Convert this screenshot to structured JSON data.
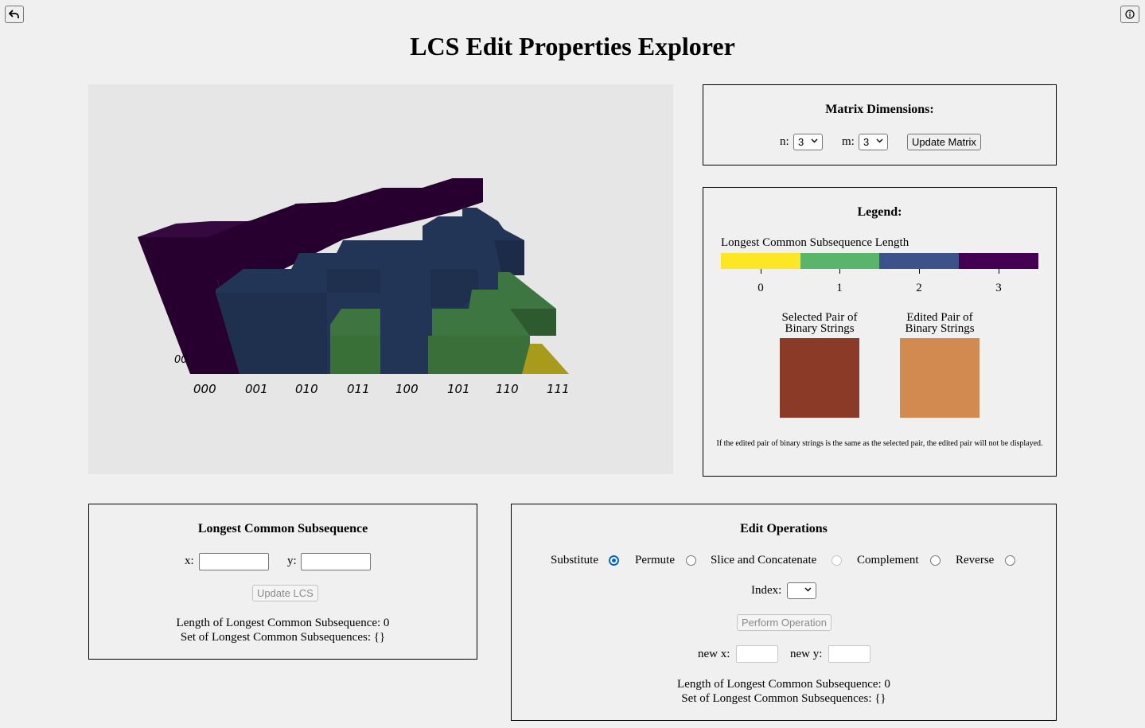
{
  "title": "LCS Edit Properties Explorer",
  "icons": {
    "back": "undo-arrow-icon",
    "info": "info-circle-icon"
  },
  "viz": {
    "axis_labels": [
      "000",
      "001",
      "010",
      "011",
      "100",
      "101",
      "110",
      "111"
    ],
    "side_label": "00"
  },
  "matrix": {
    "title": "Matrix Dimensions:",
    "n_label": "n:",
    "n_value": "3",
    "m_label": "m:",
    "m_value": "3",
    "update_label": "Update Matrix"
  },
  "legend": {
    "title": "Legend:",
    "bar_title": "Longest Common Subsequence Length",
    "colors": [
      "#fde725",
      "#5ab46a",
      "#3b528b",
      "#440154"
    ],
    "ticks": [
      "0",
      "1",
      "2",
      "3"
    ],
    "selected_label_1": "Selected Pair of",
    "selected_label_2": "Binary Strings",
    "selected_color": "#8b3a28",
    "edited_label_1": "Edited Pair of",
    "edited_label_2": "Binary Strings",
    "edited_color": "#d28a50",
    "note": "If the edited pair of binary strings is the same as the selected pair, the edited pair will not be displayed."
  },
  "lcs": {
    "title": "Longest Common Subsequence",
    "x_label": "x:",
    "y_label": "y:",
    "x_value": "",
    "y_value": "",
    "update_label": "Update LCS",
    "length_text": "Length of Longest Common Subsequence: 0",
    "set_text": "Set of Longest Common Subsequences: {}"
  },
  "edit": {
    "title": "Edit Operations",
    "ops": [
      "Substitute",
      "Permute",
      "Slice and Concatenate",
      "Complement",
      "Reverse"
    ],
    "selected_op": "Substitute",
    "index_label": "Index:",
    "index_value": "",
    "perform_label": "Perform Operation",
    "new_x_label": "new x:",
    "new_y_label": "new y:",
    "length_text": "Length of Longest Common Subsequence: 0",
    "set_text": "Set of Longest Common Subsequences: {}"
  }
}
